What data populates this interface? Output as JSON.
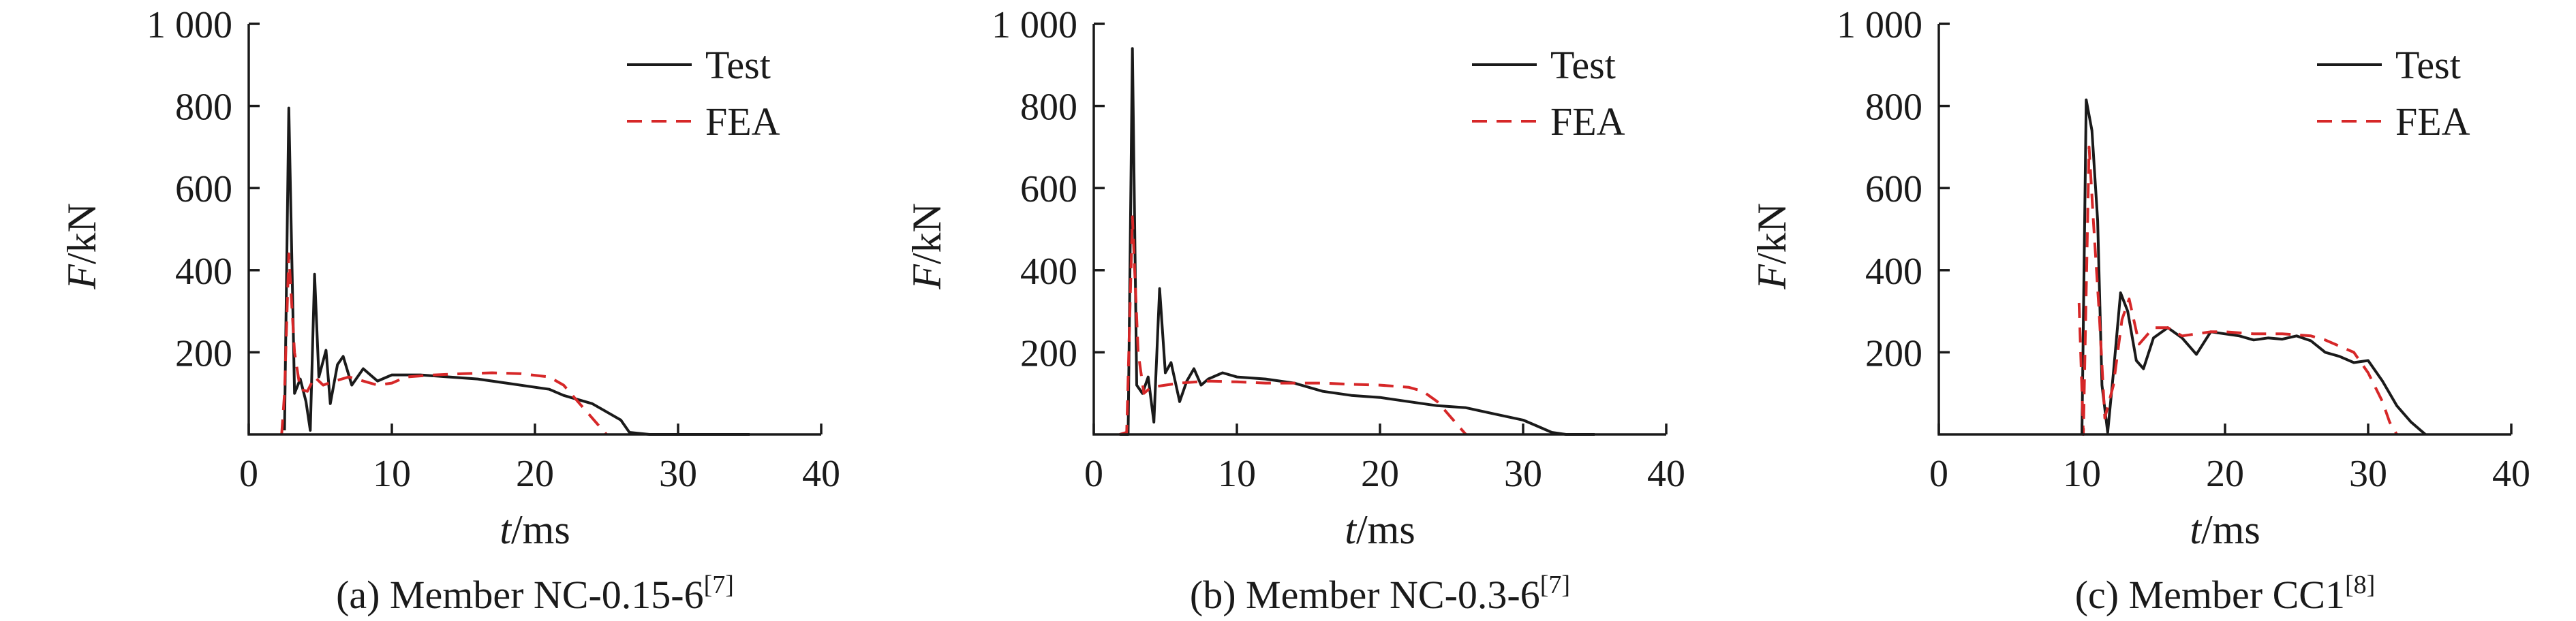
{
  "colors": {
    "test": "#1a1a1a",
    "fea": "#d62728",
    "axis": "#1a1a1a"
  },
  "chart_data": [
    {
      "type": "line",
      "caption": "(a) Member NC-0.15-6",
      "caption_ref": "[7]",
      "xlabel_var": "t",
      "xlabel_unit": "/ms",
      "ylabel_var": "F",
      "ylabel_unit": "/kN",
      "xlim": [
        0,
        40
      ],
      "ylim": [
        0,
        1000
      ],
      "x_ticks": [
        "0",
        "10",
        "20",
        "30",
        "40"
      ],
      "y_ticks": [
        "200",
        "400",
        "600",
        "800",
        "1 000"
      ],
      "legend_position": "top-right",
      "series": [
        {
          "name": "Test",
          "style": "solid",
          "points": [
            [
              2.5,
              10
            ],
            [
              2.8,
              795
            ],
            [
              3.2,
              100
            ],
            [
              3.6,
              135
            ],
            [
              4.0,
              80
            ],
            [
              4.3,
              10
            ],
            [
              4.6,
              390
            ],
            [
              4.9,
              140
            ],
            [
              5.4,
              205
            ],
            [
              5.7,
              75
            ],
            [
              6.2,
              170
            ],
            [
              6.6,
              190
            ],
            [
              7.2,
              120
            ],
            [
              8.0,
              160
            ],
            [
              8.5,
              145
            ],
            [
              9.0,
              130
            ],
            [
              10,
              145
            ],
            [
              12,
              145
            ],
            [
              14,
              140
            ],
            [
              16,
              135
            ],
            [
              18,
              125
            ],
            [
              20,
              115
            ],
            [
              21,
              110
            ],
            [
              22,
              95
            ],
            [
              24,
              75
            ],
            [
              25,
              55
            ],
            [
              26,
              35
            ],
            [
              26.6,
              5
            ],
            [
              28,
              0
            ],
            [
              35,
              0
            ]
          ]
        },
        {
          "name": "FEA",
          "style": "dashed",
          "points": [
            [
              2.3,
              0
            ],
            [
              2.5,
              100
            ],
            [
              2.8,
              440
            ],
            [
              3.2,
              200
            ],
            [
              3.6,
              110
            ],
            [
              4.1,
              105
            ],
            [
              4.6,
              140
            ],
            [
              5.2,
              120
            ],
            [
              6.0,
              130
            ],
            [
              7.0,
              140
            ],
            [
              8.0,
              130
            ],
            [
              9.0,
              120
            ],
            [
              10,
              125
            ],
            [
              11,
              140
            ],
            [
              13,
              145
            ],
            [
              15,
              148
            ],
            [
              17,
              150
            ],
            [
              19,
              148
            ],
            [
              21,
              140
            ],
            [
              22,
              120
            ],
            [
              23,
              80
            ],
            [
              24,
              40
            ],
            [
              25,
              0
            ]
          ]
        }
      ]
    },
    {
      "type": "line",
      "caption": "(b) Member NC-0.3-6",
      "caption_ref": "[7]",
      "xlabel_var": "t",
      "xlabel_unit": "/ms",
      "ylabel_var": "F",
      "ylabel_unit": "/kN",
      "xlim": [
        0,
        40
      ],
      "ylim": [
        0,
        1000
      ],
      "x_ticks": [
        "0",
        "10",
        "20",
        "30",
        "40"
      ],
      "y_ticks": [
        "200",
        "400",
        "600",
        "800",
        "1 000"
      ],
      "legend_position": "top-right",
      "series": [
        {
          "name": "Test",
          "style": "solid",
          "points": [
            [
              1.8,
              0
            ],
            [
              2.4,
              0
            ],
            [
              2.7,
              940
            ],
            [
              3.0,
              120
            ],
            [
              3.4,
              100
            ],
            [
              3.8,
              140
            ],
            [
              4.2,
              30
            ],
            [
              4.6,
              355
            ],
            [
              5.0,
              150
            ],
            [
              5.4,
              175
            ],
            [
              6.0,
              80
            ],
            [
              6.5,
              130
            ],
            [
              7.0,
              160
            ],
            [
              7.5,
              120
            ],
            [
              8.0,
              135
            ],
            [
              9.0,
              150
            ],
            [
              10,
              140
            ],
            [
              12,
              135
            ],
            [
              14,
              125
            ],
            [
              16,
              105
            ],
            [
              18,
              95
            ],
            [
              20,
              90
            ],
            [
              22,
              80
            ],
            [
              24,
              70
            ],
            [
              26,
              65
            ],
            [
              28,
              50
            ],
            [
              30,
              35
            ],
            [
              31,
              20
            ],
            [
              32,
              5
            ],
            [
              33,
              0
            ],
            [
              35,
              0
            ]
          ]
        },
        {
          "name": "FEA",
          "style": "dashed",
          "points": [
            [
              1.8,
              0
            ],
            [
              2.3,
              5
            ],
            [
              2.7,
              530
            ],
            [
              3.1,
              200
            ],
            [
              3.5,
              100
            ],
            [
              4.0,
              115
            ],
            [
              5.0,
              120
            ],
            [
              6.0,
              125
            ],
            [
              8.0,
              130
            ],
            [
              10,
              128
            ],
            [
              12,
              125
            ],
            [
              14,
              125
            ],
            [
              16,
              125
            ],
            [
              18,
              122
            ],
            [
              20,
              120
            ],
            [
              22,
              115
            ],
            [
              23,
              105
            ],
            [
              24,
              80
            ],
            [
              25,
              40
            ],
            [
              26,
              0
            ]
          ]
        }
      ]
    },
    {
      "type": "line",
      "caption": "(c) Member CC1",
      "caption_ref": "[8]",
      "xlabel_var": "t",
      "xlabel_unit": "/ms",
      "ylabel_var": "F",
      "ylabel_unit": "/kN",
      "xlim": [
        0,
        40
      ],
      "ylim": [
        0,
        1000
      ],
      "x_ticks": [
        "0",
        "10",
        "20",
        "30",
        "40"
      ],
      "y_ticks": [
        "200",
        "400",
        "600",
        "800",
        "1 000"
      ],
      "legend_position": "top-right",
      "series": [
        {
          "name": "Test",
          "style": "solid",
          "points": [
            [
              10,
              0
            ],
            [
              10.3,
              815
            ],
            [
              10.7,
              740
            ],
            [
              11.1,
              520
            ],
            [
              11.4,
              120
            ],
            [
              11.8,
              5
            ],
            [
              12.2,
              150
            ],
            [
              12.7,
              345
            ],
            [
              13.2,
              300
            ],
            [
              13.8,
              180
            ],
            [
              14.3,
              160
            ],
            [
              15,
              235
            ],
            [
              16,
              260
            ],
            [
              17,
              235
            ],
            [
              18,
              195
            ],
            [
              19,
              250
            ],
            [
              20,
              245
            ],
            [
              21,
              240
            ],
            [
              22,
              230
            ],
            [
              23,
              235
            ],
            [
              24,
              232
            ],
            [
              25,
              240
            ],
            [
              26,
              228
            ],
            [
              27,
              200
            ],
            [
              28,
              190
            ],
            [
              29,
              175
            ],
            [
              30,
              180
            ],
            [
              31,
              130
            ],
            [
              32,
              70
            ],
            [
              33,
              30
            ],
            [
              34,
              0
            ]
          ]
        },
        {
          "name": "FEA",
          "style": "dashed",
          "points": [
            [
              9.8,
              320
            ],
            [
              10.1,
              0
            ],
            [
              10.5,
              700
            ],
            [
              10.8,
              520
            ],
            [
              11.2,
              300
            ],
            [
              11.6,
              40
            ],
            [
              12.2,
              120
            ],
            [
              12.8,
              280
            ],
            [
              13.3,
              330
            ],
            [
              14,
              220
            ],
            [
              15,
              260
            ],
            [
              16,
              260
            ],
            [
              17,
              240
            ],
            [
              18,
              245
            ],
            [
              19,
              250
            ],
            [
              20,
              250
            ],
            [
              22,
              245
            ],
            [
              24,
              245
            ],
            [
              26,
              240
            ],
            [
              27,
              230
            ],
            [
              28,
              215
            ],
            [
              29,
              200
            ],
            [
              30,
              150
            ],
            [
              31,
              80
            ],
            [
              31.5,
              30
            ],
            [
              32,
              0
            ]
          ]
        }
      ]
    }
  ]
}
